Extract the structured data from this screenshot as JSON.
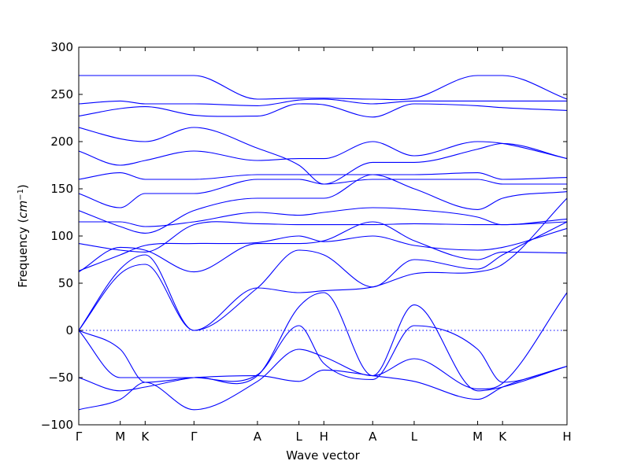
{
  "chart_data": {
    "type": "line",
    "title": "",
    "xlabel": "Wave vector",
    "ylabel": "Frequency",
    "ylabel_unit": "cm",
    "ylabel_exponent": "−1",
    "ylim": [
      -100,
      300
    ],
    "yticks": [
      300,
      250,
      200,
      150,
      100,
      50,
      0,
      -50,
      -100
    ],
    "ytick_labels": [
      "300",
      "250",
      "200",
      "150",
      "100",
      "50",
      "0",
      "−50",
      "−100"
    ],
    "xlim": [
      0,
      1
    ],
    "high_symmetry_points": [
      {
        "label": "Γ",
        "x": 0.0
      },
      {
        "label": "M",
        "x": 0.085
      },
      {
        "label": "K",
        "x": 0.136
      },
      {
        "label": "Γ",
        "x": 0.236
      },
      {
        "label": "A",
        "x": 0.366
      },
      {
        "label": "L",
        "x": 0.451
      },
      {
        "label": "H",
        "x": 0.502
      },
      {
        "label": "A",
        "x": 0.602
      },
      {
        "label": "L",
        "x": 0.687
      },
      {
        "label": "M",
        "x": 0.817
      },
      {
        "label": "K",
        "x": 0.868
      },
      {
        "label": "H",
        "x": 1.0
      }
    ],
    "zero_reference_line": true,
    "line_color": "#0000ff",
    "series": [
      {
        "x": [
          0,
          0.085,
          0.136,
          0.236,
          0.366,
          0.451,
          0.502,
          0.602,
          0.687,
          0.817,
          0.868,
          1.0
        ],
        "values": [
          0,
          -20,
          -55,
          -50,
          -48,
          -54,
          -42,
          -48,
          -54,
          -73,
          -60,
          -38
        ]
      },
      {
        "x": [
          0,
          0.085,
          0.136,
          0.236,
          0.366,
          0.451,
          0.502,
          0.602,
          0.687,
          0.817,
          0.868,
          1.0
        ],
        "values": [
          0,
          -50,
          -50,
          -50,
          -47,
          5,
          -35,
          -52,
          5,
          -20,
          -55,
          -38
        ]
      },
      {
        "x": [
          0,
          0.085,
          0.136,
          0.236,
          0.366,
          0.451,
          0.502,
          0.602,
          0.687,
          0.817,
          0.868,
          1.0
        ],
        "values": [
          -50,
          -64,
          -60,
          -50,
          -48,
          25,
          40,
          -48,
          27,
          -64,
          -60,
          -38
        ]
      },
      {
        "x": [
          0,
          0.085,
          0.136,
          0.236,
          0.366,
          0.451,
          0.502,
          0.602,
          0.687,
          0.817,
          0.868,
          1.0
        ],
        "values": [
          -84,
          -73,
          -55,
          -84,
          -54,
          -20,
          -28,
          -48,
          -30,
          -62,
          -56,
          40
        ]
      },
      {
        "x": [
          0,
          0.085,
          0.136,
          0.236,
          0.366,
          0.451,
          0.502,
          0.602,
          0.687,
          0.817,
          0.868,
          1.0
        ],
        "values": [
          0,
          60,
          70,
          0,
          45,
          40,
          42,
          46,
          60,
          62,
          70,
          140
        ]
      },
      {
        "x": [
          0,
          0.085,
          0.136,
          0.236,
          0.366,
          0.451,
          0.502,
          0.602,
          0.687,
          0.817,
          0.868,
          1.0
        ],
        "values": [
          0,
          65,
          80,
          0,
          45,
          85,
          80,
          46,
          75,
          65,
          80,
          115
        ]
      },
      {
        "x": [
          0,
          0.085,
          0.136,
          0.236,
          0.366,
          0.451,
          0.502,
          0.602,
          0.687,
          0.817,
          0.868,
          1.0
        ],
        "values": [
          62,
          88,
          85,
          62,
          92,
          92,
          95,
          115,
          95,
          75,
          83,
          82
        ]
      },
      {
        "x": [
          0,
          0.085,
          0.136,
          0.236,
          0.366,
          0.451,
          0.502,
          0.602,
          0.687,
          0.817,
          0.868,
          1.0
        ],
        "values": [
          63,
          80,
          90,
          92,
          93,
          100,
          94,
          100,
          90,
          85,
          88,
          108
        ]
      },
      {
        "x": [
          0,
          0.085,
          0.136,
          0.236,
          0.366,
          0.451,
          0.502,
          0.602,
          0.687,
          0.817,
          0.868,
          1.0
        ],
        "values": [
          92,
          85,
          83,
          112,
          113,
          112,
          112,
          112,
          113,
          112,
          112,
          115
        ]
      },
      {
        "x": [
          0,
          0.085,
          0.136,
          0.236,
          0.366,
          0.451,
          0.502,
          0.602,
          0.687,
          0.817,
          0.868,
          1.0
        ],
        "values": [
          115,
          115,
          110,
          115,
          125,
          122,
          125,
          130,
          128,
          120,
          112,
          118
        ]
      },
      {
        "x": [
          0,
          0.085,
          0.136,
          0.236,
          0.366,
          0.451,
          0.502,
          0.602,
          0.687,
          0.817,
          0.868,
          1.0
        ],
        "values": [
          127,
          110,
          103,
          127,
          140,
          140,
          140,
          165,
          150,
          128,
          140,
          147
        ]
      },
      {
        "x": [
          0,
          0.085,
          0.136,
          0.236,
          0.366,
          0.451,
          0.502,
          0.602,
          0.687,
          0.817,
          0.868,
          1.0
        ],
        "values": [
          145,
          130,
          145,
          145,
          160,
          160,
          155,
          160,
          160,
          160,
          155,
          155
        ]
      },
      {
        "x": [
          0,
          0.085,
          0.136,
          0.236,
          0.366,
          0.451,
          0.502,
          0.602,
          0.687,
          0.817,
          0.868,
          1.0
        ],
        "values": [
          160,
          167,
          160,
          160,
          165,
          165,
          165,
          165,
          165,
          167,
          160,
          162
        ]
      },
      {
        "x": [
          0,
          0.085,
          0.136,
          0.236,
          0.366,
          0.451,
          0.502,
          0.602,
          0.687,
          0.817,
          0.868,
          1.0
        ],
        "values": [
          190,
          175,
          180,
          190,
          180,
          182,
          182,
          200,
          185,
          200,
          198,
          182
        ]
      },
      {
        "x": [
          0,
          0.085,
          0.136,
          0.236,
          0.366,
          0.451,
          0.502,
          0.602,
          0.687,
          0.817,
          0.868,
          1.0
        ],
        "values": [
          215,
          203,
          200,
          215,
          193,
          175,
          155,
          178,
          178,
          192,
          198,
          182
        ]
      },
      {
        "x": [
          0,
          0.085,
          0.136,
          0.236,
          0.366,
          0.451,
          0.502,
          0.602,
          0.687,
          0.817,
          0.868,
          1.0
        ],
        "values": [
          227,
          235,
          237,
          228,
          227,
          240,
          239,
          226,
          240,
          238,
          236,
          233
        ]
      },
      {
        "x": [
          0,
          0.085,
          0.136,
          0.236,
          0.366,
          0.451,
          0.502,
          0.602,
          0.687,
          0.817,
          0.868,
          1.0
        ],
        "values": [
          240,
          243,
          240,
          240,
          238,
          244,
          245,
          240,
          243,
          243,
          243,
          243
        ]
      },
      {
        "x": [
          0,
          0.085,
          0.136,
          0.236,
          0.366,
          0.451,
          0.502,
          0.602,
          0.687,
          0.817,
          0.868,
          1.0
        ],
        "values": [
          270,
          270,
          270,
          270,
          245,
          246,
          246,
          245,
          246,
          270,
          270,
          245
        ]
      }
    ]
  }
}
